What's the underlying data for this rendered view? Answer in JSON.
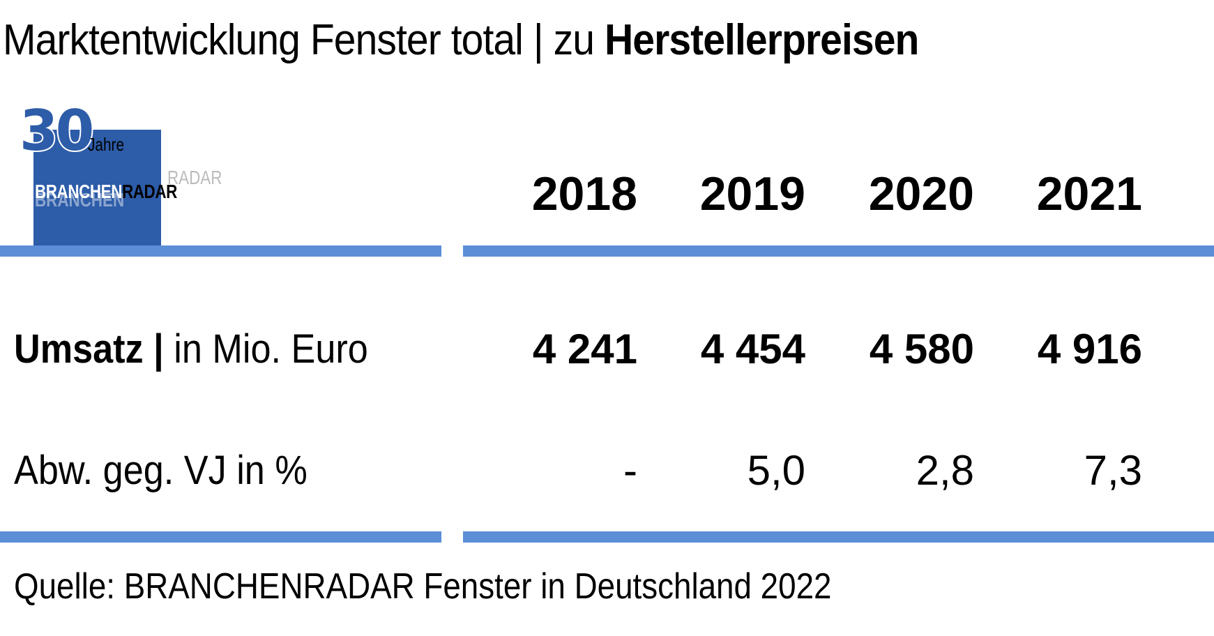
{
  "title": {
    "regular": "Marktentwicklung Fenster total | zu ",
    "bold": "Herstellerpreisen"
  },
  "logo": {
    "anniversary_number": "30",
    "anniversary_word": "Jahre",
    "brand_part1": "BRANCHEN",
    "brand_part2": "RADAR",
    "brand_color": "#2d5ca8"
  },
  "rule_color": "#5b8ed7",
  "chart_data": {
    "type": "table",
    "columns": [
      "2018",
      "2019",
      "2020",
      "2021"
    ],
    "rows": [
      {
        "label_bold": "Umsatz |",
        "label_regular": " in Mio. Euro",
        "values": [
          "4 241",
          "4 454",
          "4 580",
          "4 916"
        ]
      },
      {
        "label_bold": "",
        "label_regular": "Abw. geg. VJ in %",
        "values": [
          "-",
          "5,0",
          "2,8",
          "7,3"
        ]
      }
    ]
  },
  "source": "Quelle: BRANCHENRADAR Fenster in Deutschland 2022"
}
